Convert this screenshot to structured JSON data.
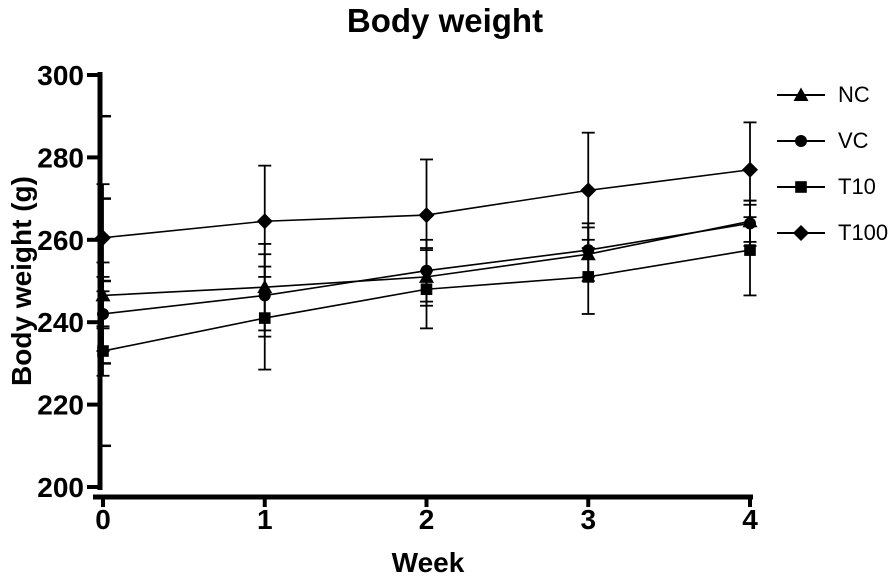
{
  "page": {
    "background": "#ffffff",
    "ink": "#000000"
  },
  "chart_data": {
    "type": "line",
    "title": "Body weight",
    "xlabel": "Week",
    "ylabel": "Body weight (g)",
    "x": [
      0,
      1,
      2,
      3,
      4
    ],
    "xticks": [
      "0",
      "1",
      "2",
      "3",
      "4"
    ],
    "yticks": [
      "200",
      "220",
      "240",
      "260",
      "280",
      "300"
    ],
    "ytick_values": [
      200,
      220,
      240,
      260,
      280,
      300
    ],
    "yminor_values": [
      210,
      230,
      250,
      270,
      290
    ],
    "xlim": [
      0,
      4
    ],
    "ylim": [
      200,
      300
    ],
    "grid": false,
    "legend_position": "right",
    "error_bars": true,
    "series": [
      {
        "name": "NC",
        "marker": "triangle",
        "values": [
          246.5,
          248.5,
          251.0,
          256.5,
          264.5
        ],
        "errors": [
          8.0,
          10.5,
          7.0,
          6.5,
          5.0
        ]
      },
      {
        "name": "VC",
        "marker": "circle",
        "values": [
          242.0,
          246.5,
          252.5,
          257.5,
          264.0
        ],
        "errors": [
          9.0,
          10.0,
          7.5,
          6.5,
          5.5
        ]
      },
      {
        "name": "T10",
        "marker": "square",
        "values": [
          233.0,
          241.0,
          248.0,
          251.0,
          257.5
        ],
        "errors": [
          6.0,
          12.5,
          9.5,
          9.0,
          11.0
        ]
      },
      {
        "name": "T100",
        "marker": "diamond",
        "values": [
          260.5,
          264.5,
          266.0,
          272.0,
          277.0
        ],
        "errors": [
          13.0,
          13.5,
          13.5,
          14.0,
          11.5
        ]
      }
    ]
  }
}
